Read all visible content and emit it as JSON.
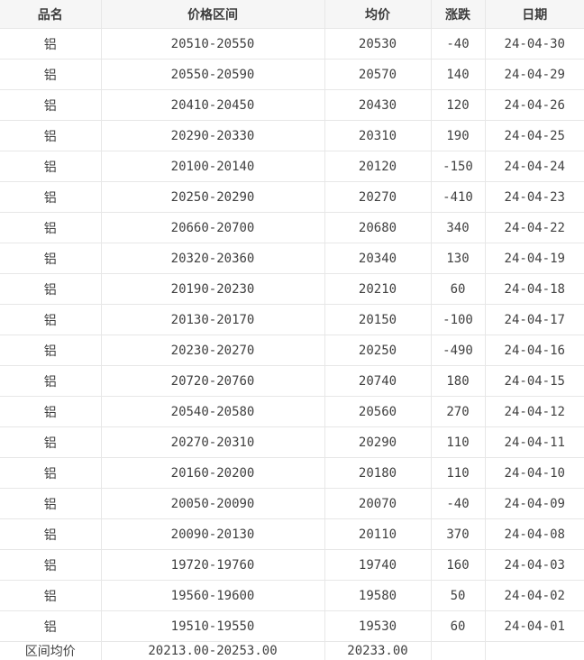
{
  "colors": {
    "header_bg": "#f6f6f6",
    "border": "#e7e7e7",
    "text": "#404040"
  },
  "table": {
    "columns": [
      {
        "key": "name",
        "label": "品名"
      },
      {
        "key": "range",
        "label": "价格区间"
      },
      {
        "key": "avg",
        "label": "均价"
      },
      {
        "key": "change",
        "label": "涨跌"
      },
      {
        "key": "date",
        "label": "日期"
      }
    ],
    "rows": [
      {
        "name": "铝",
        "range": "20510-20550",
        "avg": "20530",
        "change": "-40",
        "date": "24-04-30"
      },
      {
        "name": "铝",
        "range": "20550-20590",
        "avg": "20570",
        "change": "140",
        "date": "24-04-29"
      },
      {
        "name": "铝",
        "range": "20410-20450",
        "avg": "20430",
        "change": "120",
        "date": "24-04-26"
      },
      {
        "name": "铝",
        "range": "20290-20330",
        "avg": "20310",
        "change": "190",
        "date": "24-04-25"
      },
      {
        "name": "铝",
        "range": "20100-20140",
        "avg": "20120",
        "change": "-150",
        "date": "24-04-24"
      },
      {
        "name": "铝",
        "range": "20250-20290",
        "avg": "20270",
        "change": "-410",
        "date": "24-04-23"
      },
      {
        "name": "铝",
        "range": "20660-20700",
        "avg": "20680",
        "change": "340",
        "date": "24-04-22"
      },
      {
        "name": "铝",
        "range": "20320-20360",
        "avg": "20340",
        "change": "130",
        "date": "24-04-19"
      },
      {
        "name": "铝",
        "range": "20190-20230",
        "avg": "20210",
        "change": "60",
        "date": "24-04-18"
      },
      {
        "name": "铝",
        "range": "20130-20170",
        "avg": "20150",
        "change": "-100",
        "date": "24-04-17"
      },
      {
        "name": "铝",
        "range": "20230-20270",
        "avg": "20250",
        "change": "-490",
        "date": "24-04-16"
      },
      {
        "name": "铝",
        "range": "20720-20760",
        "avg": "20740",
        "change": "180",
        "date": "24-04-15"
      },
      {
        "name": "铝",
        "range": "20540-20580",
        "avg": "20560",
        "change": "270",
        "date": "24-04-12"
      },
      {
        "name": "铝",
        "range": "20270-20310",
        "avg": "20290",
        "change": "110",
        "date": "24-04-11"
      },
      {
        "name": "铝",
        "range": "20160-20200",
        "avg": "20180",
        "change": "110",
        "date": "24-04-10"
      },
      {
        "name": "铝",
        "range": "20050-20090",
        "avg": "20070",
        "change": "-40",
        "date": "24-04-09"
      },
      {
        "name": "铝",
        "range": "20090-20130",
        "avg": "20110",
        "change": "370",
        "date": "24-04-08"
      },
      {
        "name": "铝",
        "range": "19720-19760",
        "avg": "19740",
        "change": "160",
        "date": "24-04-03"
      },
      {
        "name": "铝",
        "range": "19560-19600",
        "avg": "19580",
        "change": "50",
        "date": "24-04-02"
      },
      {
        "name": "铝",
        "range": "19510-19550",
        "avg": "19530",
        "change": "60",
        "date": "24-04-01"
      }
    ],
    "footer": {
      "name": "区间均价",
      "range": "20213.00-20253.00",
      "avg": "20233.00",
      "change": "",
      "date": ""
    }
  }
}
